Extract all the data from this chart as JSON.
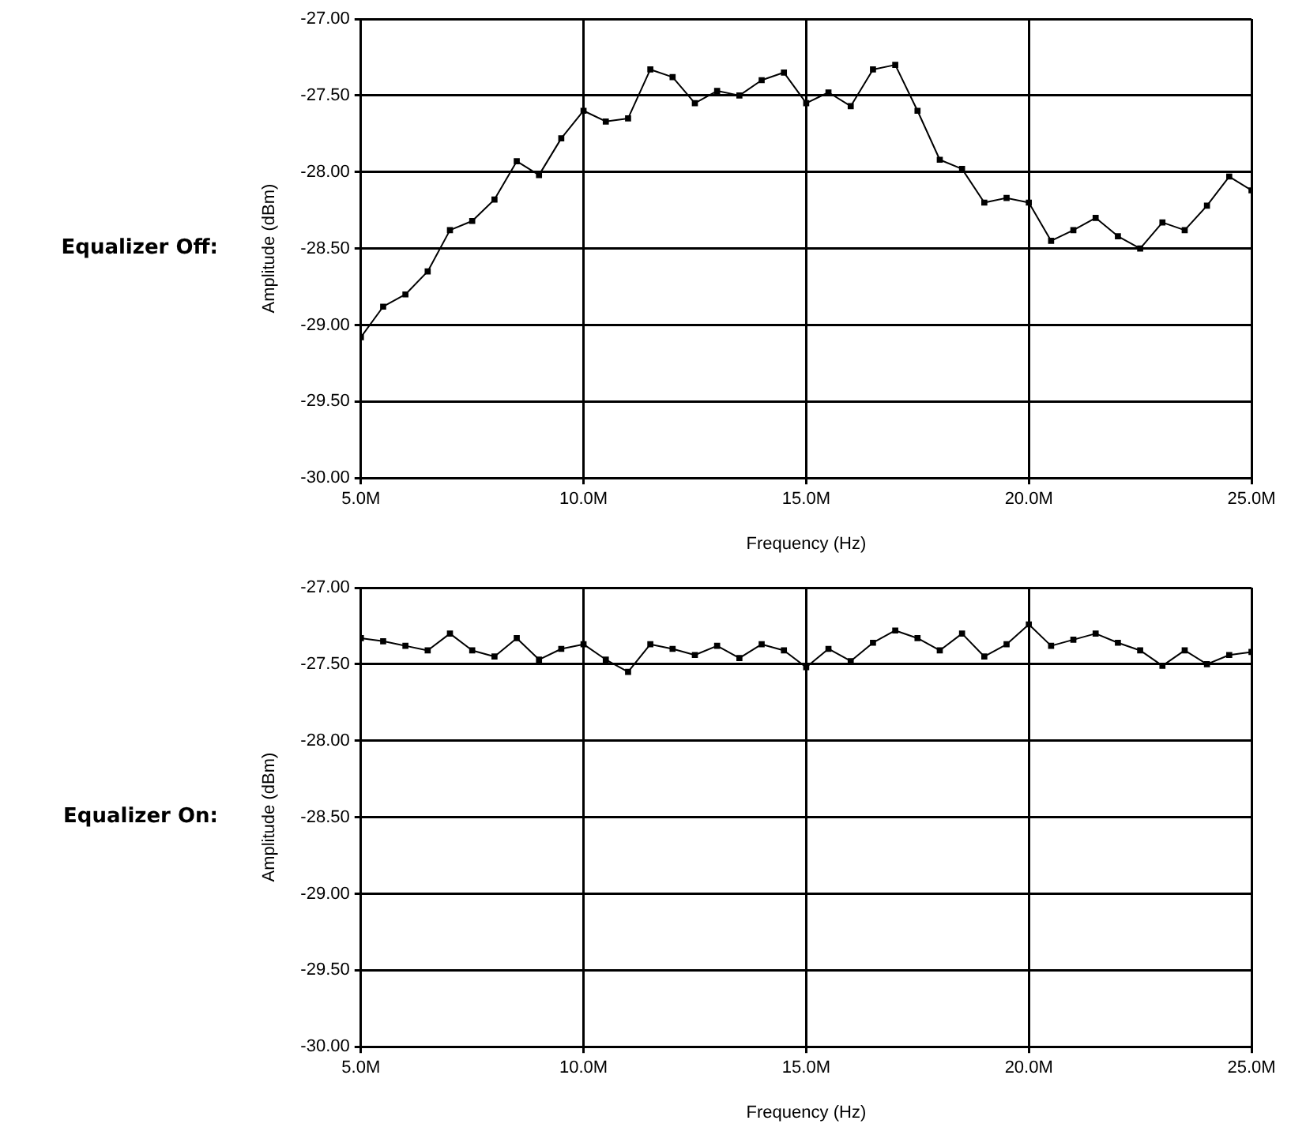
{
  "chart_data": [
    {
      "type": "line",
      "title": "Equalizer Off:",
      "xlabel": "Frequency (Hz)",
      "ylabel": "Amplitude (dBm)",
      "grid": true,
      "legend": false,
      "marker": "square",
      "line_style": "solid",
      "x": [
        5000000,
        5500000,
        6000000,
        6500000,
        7000000,
        7500000,
        8000000,
        8500000,
        9000000,
        9500000,
        10000000,
        10500000,
        11000000,
        11500000,
        12000000,
        12500000,
        13000000,
        13500000,
        14000000,
        14500000,
        15000000,
        15500000,
        16000000,
        16500000,
        17000000,
        17500000,
        18000000,
        18500000,
        19000000,
        19500000,
        20000000,
        20500000,
        21000000,
        21500000,
        22000000,
        22500000,
        23000000,
        23500000,
        24000000,
        24500000,
        25000000
      ],
      "series": [
        {
          "color": "#000000",
          "values": [
            -29.08,
            -28.88,
            -28.8,
            -28.65,
            -28.38,
            -28.32,
            -28.18,
            -27.93,
            -28.02,
            -27.78,
            -27.6,
            -27.67,
            -27.65,
            -27.33,
            -27.38,
            -27.55,
            -27.47,
            -27.5,
            -27.4,
            -27.35,
            -27.55,
            -27.48,
            -27.57,
            -27.33,
            -27.3,
            -27.6,
            -27.92,
            -27.98,
            -28.2,
            -28.17,
            -28.2,
            -28.45,
            -28.38,
            -28.3,
            -28.42,
            -28.5,
            -28.33,
            -28.38,
            -28.22,
            -28.03,
            -28.12
          ]
        }
      ],
      "xlim": [
        5000000,
        25000000
      ],
      "xticks": [
        {
          "value": 5000000,
          "label": "5.0M"
        },
        {
          "value": 10000000,
          "label": "10.0M"
        },
        {
          "value": 15000000,
          "label": "15.0M"
        },
        {
          "value": 20000000,
          "label": "20.0M"
        },
        {
          "value": 25000000,
          "label": "25.0M"
        }
      ],
      "ylim": [
        -30,
        -27
      ],
      "yticks": [
        {
          "value": -30,
          "label": "-30.00"
        },
        {
          "value": -29.5,
          "label": "-29.50"
        },
        {
          "value": -29,
          "label": "-29.00"
        },
        {
          "value": -28.5,
          "label": "-28.50"
        },
        {
          "value": -28,
          "label": "-28.00"
        },
        {
          "value": -27.5,
          "label": "-27.50"
        },
        {
          "value": -27,
          "label": "-27.00"
        }
      ]
    },
    {
      "type": "line",
      "title": "Equalizer On:",
      "xlabel": "Frequency (Hz)",
      "ylabel": "Amplitude (dBm)",
      "grid": true,
      "legend": false,
      "marker": "square",
      "line_style": "solid",
      "x": [
        5000000,
        5500000,
        6000000,
        6500000,
        7000000,
        7500000,
        8000000,
        8500000,
        9000000,
        9500000,
        10000000,
        10500000,
        11000000,
        11500000,
        12000000,
        12500000,
        13000000,
        13500000,
        14000000,
        14500000,
        15000000,
        15500000,
        16000000,
        16500000,
        17000000,
        17500000,
        18000000,
        18500000,
        19000000,
        19500000,
        20000000,
        20500000,
        21000000,
        21500000,
        22000000,
        22500000,
        23000000,
        23500000,
        24000000,
        24500000,
        25000000
      ],
      "series": [
        {
          "color": "#000000",
          "values": [
            -27.33,
            -27.35,
            -27.38,
            -27.41,
            -27.3,
            -27.41,
            -27.45,
            -27.33,
            -27.47,
            -27.4,
            -27.37,
            -27.47,
            -27.55,
            -27.37,
            -27.4,
            -27.44,
            -27.38,
            -27.46,
            -27.37,
            -27.41,
            -27.52,
            -27.4,
            -27.48,
            -27.36,
            -27.28,
            -27.33,
            -27.41,
            -27.3,
            -27.45,
            -27.37,
            -27.24,
            -27.38,
            -27.34,
            -27.3,
            -27.36,
            -27.41,
            -27.51,
            -27.41,
            -27.5,
            -27.44,
            -27.42
          ]
        }
      ],
      "xlim": [
        5000000,
        25000000
      ],
      "xticks": [
        {
          "value": 5000000,
          "label": "5.0M"
        },
        {
          "value": 10000000,
          "label": "10.0M"
        },
        {
          "value": 15000000,
          "label": "15.0M"
        },
        {
          "value": 20000000,
          "label": "20.0M"
        },
        {
          "value": 25000000,
          "label": "25.0M"
        }
      ],
      "ylim": [
        -30,
        -27
      ],
      "yticks": [
        {
          "value": -30,
          "label": "-30.00"
        },
        {
          "value": -29.5,
          "label": "-29.50"
        },
        {
          "value": -29,
          "label": "-29.00"
        },
        {
          "value": -28.5,
          "label": "-28.50"
        },
        {
          "value": -28,
          "label": "-28.00"
        },
        {
          "value": -27.5,
          "label": "-27.50"
        },
        {
          "value": -27,
          "label": "-27.00"
        }
      ]
    }
  ]
}
